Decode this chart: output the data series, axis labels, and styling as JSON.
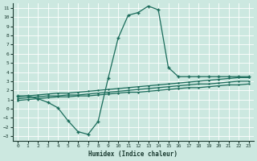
{
  "title": "",
  "xlabel": "Humidex (Indice chaleur)",
  "bg_color": "#cce8e0",
  "grid_color": "#b0d8d0",
  "line_color": "#1a6b5a",
  "xlim": [
    -0.5,
    23.5
  ],
  "ylim": [
    -3.5,
    11.5
  ],
  "xticks": [
    0,
    1,
    2,
    3,
    4,
    5,
    6,
    7,
    8,
    9,
    10,
    11,
    12,
    13,
    14,
    15,
    16,
    17,
    18,
    19,
    20,
    21,
    22,
    23
  ],
  "yticks": [
    -3,
    -2,
    -1,
    0,
    1,
    2,
    3,
    4,
    5,
    6,
    7,
    8,
    9,
    10,
    11
  ],
  "main_x": [
    0,
    1,
    2,
    3,
    4,
    5,
    6,
    7,
    8,
    9,
    10,
    11,
    12,
    13,
    14,
    15,
    16,
    17,
    18,
    19,
    20,
    21,
    22,
    23
  ],
  "main_y": [
    1.4,
    1.4,
    1.1,
    0.7,
    0.1,
    -1.3,
    -2.5,
    -2.8,
    -1.4,
    3.3,
    7.7,
    10.2,
    10.5,
    11.2,
    10.8,
    4.5,
    3.5,
    3.5,
    3.5,
    3.5,
    3.5,
    3.5,
    3.5,
    3.5
  ],
  "line2_x": [
    0,
    1,
    2,
    3,
    4,
    5,
    6,
    7,
    8,
    9,
    10,
    11,
    12,
    13,
    14,
    15,
    16,
    17,
    18,
    19,
    20,
    21,
    22,
    23
  ],
  "line2_y": [
    1.3,
    1.4,
    1.5,
    1.6,
    1.7,
    1.7,
    1.8,
    1.9,
    2.0,
    2.1,
    2.2,
    2.3,
    2.4,
    2.5,
    2.6,
    2.7,
    2.8,
    2.9,
    3.0,
    3.1,
    3.2,
    3.3,
    3.4,
    3.4
  ],
  "line3_x": [
    0,
    1,
    2,
    3,
    4,
    5,
    6,
    7,
    8,
    9,
    10,
    11,
    12,
    13,
    14,
    15,
    16,
    17,
    18,
    19,
    20,
    21,
    22,
    23
  ],
  "line3_y": [
    1.1,
    1.2,
    1.3,
    1.4,
    1.4,
    1.5,
    1.5,
    1.6,
    1.7,
    1.8,
    1.9,
    2.0,
    2.1,
    2.2,
    2.3,
    2.4,
    2.5,
    2.6,
    2.7,
    2.7,
    2.8,
    2.9,
    3.0,
    3.0
  ],
  "line4_x": [
    0,
    1,
    2,
    3,
    4,
    5,
    6,
    7,
    8,
    9,
    10,
    11,
    12,
    13,
    14,
    15,
    16,
    17,
    18,
    19,
    20,
    21,
    22,
    23
  ],
  "line4_y": [
    0.9,
    1.0,
    1.1,
    1.2,
    1.3,
    1.3,
    1.4,
    1.4,
    1.5,
    1.6,
    1.7,
    1.8,
    1.8,
    1.9,
    2.0,
    2.1,
    2.2,
    2.3,
    2.3,
    2.4,
    2.5,
    2.6,
    2.6,
    2.7
  ]
}
